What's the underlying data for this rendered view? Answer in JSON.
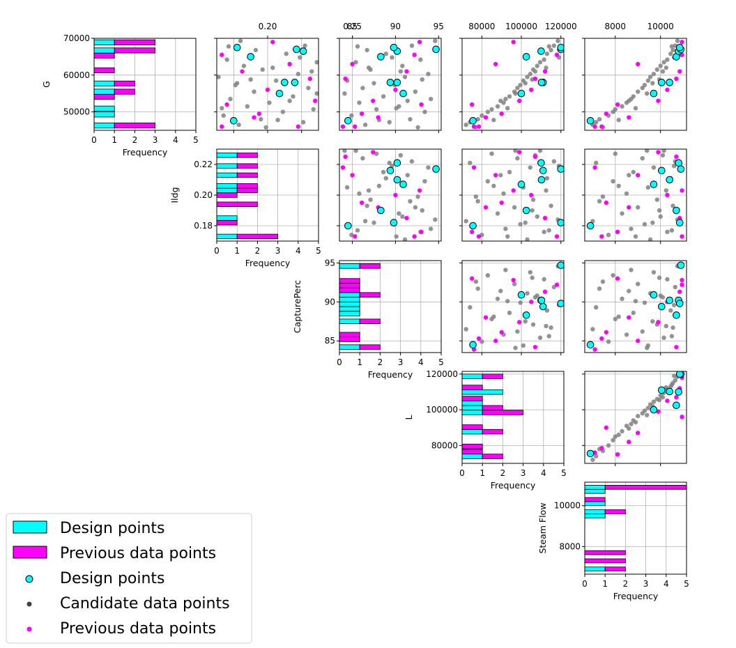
{
  "colors": {
    "design": "#00ffff",
    "previous": "#ff00ff",
    "candidate": "#808080",
    "candidate_legend": "#404040",
    "grid": "#b0b0b0"
  },
  "chart_data": {
    "type": "scatter",
    "subtype": "pair-plot matrix (upper triangle scatter, diagonal horizontal histograms)",
    "variables": [
      {
        "name": "G",
        "range": [
          45000,
          70000
        ],
        "ticks": [
          "50000",
          "60000",
          "70000"
        ],
        "tick_values": [
          50000,
          60000,
          70000
        ]
      },
      {
        "name": "Ildg",
        "range": [
          0.17,
          0.23
        ],
        "ticks": [
          "0.18",
          "0.20",
          "0.22"
        ],
        "tick_values": [
          0.18,
          0.2,
          0.22
        ],
        "top_ticks": [
          "0.20",
          "0.25"
        ],
        "top_tick_values": [
          0.2,
          0.25
        ]
      },
      {
        "name": "CapturePerc",
        "range": [
          83.5,
          95.3
        ],
        "ticks": [
          "85",
          "90",
          "95"
        ],
        "tick_values": [
          85,
          90,
          95
        ]
      },
      {
        "name": "L",
        "range": [
          70000,
          121500
        ],
        "ticks": [
          "80000",
          "100000",
          "120000"
        ],
        "tick_values": [
          80000,
          100000,
          120000
        ]
      },
      {
        "name": "Steam Flow",
        "range": [
          6650,
          11150
        ],
        "ticks": [
          "8000",
          "10000"
        ],
        "tick_values": [
          8000,
          10000
        ]
      }
    ],
    "histograms": {
      "xlabel": "Frequency",
      "xlim": [
        0,
        5
      ],
      "xticks": [
        "0",
        "1",
        "2",
        "3",
        "4",
        "5"
      ],
      "stacked": true,
      "series_order": [
        "Design points",
        "Previous data points"
      ],
      "per_variable": [
        {
          "variable": "G",
          "bins": [
            {
              "lo": 45600,
              "hi": 47000,
              "design": 1,
              "previous": 2
            },
            {
              "lo": 48600,
              "hi": 50000,
              "design": 1,
              "previous": 0
            },
            {
              "lo": 50200,
              "hi": 51600,
              "design": 1,
              "previous": 0
            },
            {
              "lo": 53400,
              "hi": 54800,
              "design": 0,
              "previous": 1
            },
            {
              "lo": 54800,
              "hi": 56200,
              "design": 1,
              "previous": 1
            },
            {
              "lo": 57000,
              "hi": 58400,
              "design": 1,
              "previous": 1
            },
            {
              "lo": 60600,
              "hi": 62000,
              "design": 0,
              "previous": 1
            },
            {
              "lo": 64600,
              "hi": 66000,
              "design": 0,
              "previous": 1
            },
            {
              "lo": 66000,
              "hi": 67400,
              "design": 1,
              "previous": 2
            },
            {
              "lo": 68200,
              "hi": 69600,
              "design": 1,
              "previous": 2
            }
          ]
        },
        {
          "variable": "Ildg",
          "bins": [
            {
              "lo": 0.1715,
              "hi": 0.1745,
              "design": 1,
              "previous": 2
            },
            {
              "lo": 0.1805,
              "hi": 0.1835,
              "design": 0,
              "previous": 1
            },
            {
              "lo": 0.1835,
              "hi": 0.1865,
              "design": 1,
              "previous": 0
            },
            {
              "lo": 0.1925,
              "hi": 0.1955,
              "design": 0,
              "previous": 2
            },
            {
              "lo": 0.1985,
              "hi": 0.2015,
              "design": 0,
              "previous": 1
            },
            {
              "lo": 0.2015,
              "hi": 0.2045,
              "design": 1,
              "previous": 1
            },
            {
              "lo": 0.2045,
              "hi": 0.2075,
              "design": 1,
              "previous": 1
            },
            {
              "lo": 0.2115,
              "hi": 0.2145,
              "design": 1,
              "previous": 1
            },
            {
              "lo": 0.2175,
              "hi": 0.2205,
              "design": 1,
              "previous": 1
            },
            {
              "lo": 0.2245,
              "hi": 0.2275,
              "design": 1,
              "previous": 1
            }
          ]
        },
        {
          "variable": "CapturePerc",
          "bins": [
            {
              "lo": 83.9,
              "hi": 84.5,
              "design": 1,
              "previous": 1
            },
            {
              "lo": 84.9,
              "hi": 85.5,
              "design": 0,
              "previous": 1
            },
            {
              "lo": 85.5,
              "hi": 86.1,
              "design": 0,
              "previous": 1
            },
            {
              "lo": 87.2,
              "hi": 87.8,
              "design": 1,
              "previous": 1
            },
            {
              "lo": 88.2,
              "hi": 88.8,
              "design": 1,
              "previous": 0
            },
            {
              "lo": 88.8,
              "hi": 89.4,
              "design": 1,
              "previous": 0
            },
            {
              "lo": 89.4,
              "hi": 90.0,
              "design": 1,
              "previous": 0
            },
            {
              "lo": 90.0,
              "hi": 90.6,
              "design": 1,
              "previous": 0
            },
            {
              "lo": 90.6,
              "hi": 91.2,
              "design": 1,
              "previous": 1
            },
            {
              "lo": 91.2,
              "hi": 91.8,
              "design": 0,
              "previous": 1
            },
            {
              "lo": 91.8,
              "hi": 92.4,
              "design": 0,
              "previous": 1
            },
            {
              "lo": 92.4,
              "hi": 93.0,
              "design": 0,
              "previous": 1
            },
            {
              "lo": 94.3,
              "hi": 94.9,
              "design": 1,
              "previous": 1
            }
          ]
        },
        {
          "variable": "L",
          "bins": [
            {
              "lo": 72600,
              "hi": 75200,
              "design": 1,
              "previous": 1
            },
            {
              "lo": 75200,
              "hi": 77800,
              "design": 0,
              "previous": 1
            },
            {
              "lo": 78200,
              "hi": 80800,
              "design": 0,
              "previous": 1
            },
            {
              "lo": 86400,
              "hi": 89000,
              "design": 1,
              "previous": 1
            },
            {
              "lo": 89000,
              "hi": 91600,
              "design": 0,
              "previous": 1
            },
            {
              "lo": 97200,
              "hi": 99800,
              "design": 1,
              "previous": 2
            },
            {
              "lo": 99800,
              "hi": 102400,
              "design": 1,
              "previous": 1
            },
            {
              "lo": 102400,
              "hi": 105000,
              "design": 1,
              "previous": 0
            },
            {
              "lo": 105000,
              "hi": 107600,
              "design": 0,
              "previous": 1
            },
            {
              "lo": 108600,
              "hi": 111200,
              "design": 2,
              "previous": 0
            },
            {
              "lo": 111200,
              "hi": 113800,
              "design": 0,
              "previous": 1
            },
            {
              "lo": 117400,
              "hi": 120000,
              "design": 1,
              "previous": 1
            }
          ]
        },
        {
          "variable": "Steam Flow",
          "bins": [
            {
              "lo": 6800,
              "hi": 7000,
              "design": 1,
              "previous": 1
            },
            {
              "lo": 7200,
              "hi": 7400,
              "design": 0,
              "previous": 2
            },
            {
              "lo": 7600,
              "hi": 7800,
              "design": 0,
              "previous": 2
            },
            {
              "lo": 9400,
              "hi": 9600,
              "design": 1,
              "previous": 0
            },
            {
              "lo": 9600,
              "hi": 9800,
              "design": 1,
              "previous": 1
            },
            {
              "lo": 10000,
              "hi": 10200,
              "design": 1,
              "previous": 0
            },
            {
              "lo": 10200,
              "hi": 10400,
              "design": 0,
              "previous": 1
            },
            {
              "lo": 10600,
              "hi": 10800,
              "design": 1,
              "previous": 0
            },
            {
              "lo": 10800,
              "hi": 11000,
              "design": 1,
              "previous": 4
            }
          ]
        }
      ]
    },
    "design_points": [
      {
        "G": 47600,
        "Ildg": 0.18,
        "CapturePerc": 84.5,
        "L": 75500,
        "Steam Flow": 6900
      },
      {
        "G": 55000,
        "Ildg": 0.207,
        "CapturePerc": 90.9,
        "L": 100000,
        "Steam Flow": 9700
      },
      {
        "G": 58000,
        "Ildg": 0.216,
        "CapturePerc": 89.4,
        "L": 111000,
        "Steam Flow": 10050
      },
      {
        "G": 65000,
        "Ildg": 0.19,
        "CapturePerc": 88.3,
        "L": 102500,
        "Steam Flow": 10700
      },
      {
        "G": 66500,
        "Ildg": 0.221,
        "CapturePerc": 90.2,
        "L": 110000,
        "Steam Flow": 10800
      },
      {
        "G": 67000,
        "Ildg": 0.217,
        "CapturePerc": 94.7,
        "L": 120000,
        "Steam Flow": 10900
      },
      {
        "G": 67500,
        "Ildg": 0.182,
        "CapturePerc": 89.8,
        "L": 120000,
        "Steam Flow": 10850
      },
      {
        "G": 58000,
        "Ildg": 0.21,
        "CapturePerc": 90.2,
        "L": 110200,
        "Steam Flow": 10400
      }
    ],
    "previous_points": [
      {
        "G": 46000,
        "Ildg": 0.218,
        "CapturePerc": 83.9,
        "L": 76000,
        "Steam Flow": 7100
      },
      {
        "G": 46000,
        "Ildg": 0.173,
        "CapturePerc": 85.3,
        "L": 78500,
        "Steam Flow": 7400
      },
      {
        "G": 49500,
        "Ildg": 0.195,
        "CapturePerc": 86.1,
        "L": 90000,
        "Steam Flow": 7600
      },
      {
        "G": 53000,
        "Ildg": 0.228,
        "CapturePerc": 87.4,
        "L": 99000,
        "Steam Flow": 9900
      },
      {
        "G": 56000,
        "Ildg": 0.2,
        "CapturePerc": 90.0,
        "L": 105000,
        "Steam Flow": 10300
      },
      {
        "G": 61000,
        "Ildg": 0.185,
        "CapturePerc": 91.3,
        "L": 112000,
        "Steam Flow": 10850
      },
      {
        "G": 65500,
        "Ildg": 0.173,
        "CapturePerc": 92.2,
        "L": 118000,
        "Steam Flow": 10950
      },
      {
        "G": 69000,
        "Ildg": 0.203,
        "CapturePerc": 92.8,
        "L": 96000,
        "Steam Flow": 10950
      },
      {
        "G": 48500,
        "Ildg": 0.192,
        "CapturePerc": 88.0,
        "L": 82000,
        "Steam Flow": 8600
      },
      {
        "G": 63000,
        "Ildg": 0.213,
        "CapturePerc": 85.0,
        "L": 87000,
        "Steam Flow": 9000
      },
      {
        "G": 52000,
        "Ildg": 0.176,
        "CapturePerc": 93.0,
        "L": 75000,
        "Steam Flow": 8100
      },
      {
        "G": 59000,
        "Ildg": 0.225,
        "CapturePerc": 84.2,
        "L": 107000,
        "Steam Flow": 10700
      }
    ],
    "candidate_points_note_excluded": false,
    "candidate_points": [
      {
        "G": 46500,
        "Ildg": 0.183,
        "CapturePerc": 86.5,
        "L": 72000,
        "Steam Flow": 7000
      },
      {
        "G": 47200,
        "Ildg": 0.221,
        "CapturePerc": 89.3,
        "L": 74000,
        "Steam Flow": 7150
      },
      {
        "G": 48000,
        "Ildg": 0.196,
        "CapturePerc": 91.7,
        "L": 78000,
        "Steam Flow": 7300
      },
      {
        "G": 49000,
        "Ildg": 0.174,
        "CapturePerc": 84.9,
        "L": 80000,
        "Steam Flow": 7700
      },
      {
        "G": 50000,
        "Ildg": 0.209,
        "CapturePerc": 93.4,
        "L": 83000,
        "Steam Flow": 7900
      },
      {
        "G": 50700,
        "Ildg": 0.227,
        "CapturePerc": 87.8,
        "L": 85000,
        "Steam Flow": 8000
      },
      {
        "G": 51500,
        "Ildg": 0.188,
        "CapturePerc": 90.4,
        "L": 88000,
        "Steam Flow": 8300
      },
      {
        "G": 52500,
        "Ildg": 0.201,
        "CapturePerc": 85.8,
        "L": 91000,
        "Steam Flow": 8500
      },
      {
        "G": 53500,
        "Ildg": 0.178,
        "CapturePerc": 94.1,
        "L": 92000,
        "Steam Flow": 8700
      },
      {
        "G": 54200,
        "Ildg": 0.215,
        "CapturePerc": 88.6,
        "L": 94000,
        "Steam Flow": 8800
      },
      {
        "G": 55500,
        "Ildg": 0.192,
        "CapturePerc": 92.3,
        "L": 96500,
        "Steam Flow": 9000
      },
      {
        "G": 56500,
        "Ildg": 0.224,
        "CapturePerc": 86.2,
        "L": 98000,
        "Steam Flow": 9200
      },
      {
        "G": 57300,
        "Ildg": 0.181,
        "CapturePerc": 89.9,
        "L": 99500,
        "Steam Flow": 9300
      },
      {
        "G": 58500,
        "Ildg": 0.205,
        "CapturePerc": 84.4,
        "L": 101000,
        "Steam Flow": 9450
      },
      {
        "G": 59500,
        "Ildg": 0.171,
        "CapturePerc": 91.1,
        "L": 103000,
        "Steam Flow": 9550
      },
      {
        "G": 60300,
        "Ildg": 0.218,
        "CapturePerc": 93.8,
        "L": 104500,
        "Steam Flow": 9700
      },
      {
        "G": 61500,
        "Ildg": 0.197,
        "CapturePerc": 87.1,
        "L": 106000,
        "Steam Flow": 9850
      },
      {
        "G": 62500,
        "Ildg": 0.186,
        "CapturePerc": 90.8,
        "L": 108000,
        "Steam Flow": 10000
      },
      {
        "G": 63500,
        "Ildg": 0.229,
        "CapturePerc": 85.4,
        "L": 109500,
        "Steam Flow": 10150
      },
      {
        "G": 64200,
        "Ildg": 0.176,
        "CapturePerc": 92.9,
        "L": 111500,
        "Steam Flow": 10300
      },
      {
        "G": 65800,
        "Ildg": 0.211,
        "CapturePerc": 88.9,
        "L": 113000,
        "Steam Flow": 10450
      },
      {
        "G": 66800,
        "Ildg": 0.193,
        "CapturePerc": 86.7,
        "L": 115000,
        "Steam Flow": 10550
      },
      {
        "G": 68000,
        "Ildg": 0.222,
        "CapturePerc": 91.9,
        "L": 116500,
        "Steam Flow": 10650
      },
      {
        "G": 69300,
        "Ildg": 0.184,
        "CapturePerc": 94.6,
        "L": 118500,
        "Steam Flow": 10750
      },
      {
        "G": 47800,
        "Ildg": 0.206,
        "CapturePerc": 88.1,
        "L": 86000,
        "Steam Flow": 8150
      },
      {
        "G": 51000,
        "Ildg": 0.173,
        "CapturePerc": 90.1,
        "L": 93000,
        "Steam Flow": 8900
      },
      {
        "G": 55000,
        "Ildg": 0.229,
        "CapturePerc": 84.1,
        "L": 97000,
        "Steam Flow": 9400
      },
      {
        "G": 58800,
        "Ildg": 0.19,
        "CapturePerc": 93.1,
        "L": 105500,
        "Steam Flow": 9950
      },
      {
        "G": 62000,
        "Ildg": 0.203,
        "CapturePerc": 86.9,
        "L": 112500,
        "Steam Flow": 10250
      },
      {
        "G": 64800,
        "Ildg": 0.219,
        "CapturePerc": 89.6,
        "L": 119000,
        "Steam Flow": 10600
      },
      {
        "G": 67800,
        "Ildg": 0.177,
        "CapturePerc": 85.6,
        "L": 114000,
        "Steam Flow": 10500
      },
      {
        "G": 45800,
        "Ildg": 0.199,
        "CapturePerc": 92.6,
        "L": 77000,
        "Steam Flow": 7450
      },
      {
        "G": 53000,
        "Ildg": 0.213,
        "CapturePerc": 91.4,
        "L": 89500,
        "Steam Flow": 8600
      },
      {
        "G": 57800,
        "Ildg": 0.182,
        "CapturePerc": 87.5,
        "L": 102000,
        "Steam Flow": 9650
      },
      {
        "G": 61000,
        "Ildg": 0.226,
        "CapturePerc": 90.6,
        "L": 107000,
        "Steam Flow": 10100
      }
    ],
    "legend": {
      "placement": "bottom-left",
      "entries": [
        {
          "label": "Design points",
          "kind": "patch",
          "color_key": "design"
        },
        {
          "label": "Previous data points",
          "kind": "patch",
          "color_key": "previous"
        },
        {
          "label": "Design points",
          "kind": "marker",
          "color_key": "design"
        },
        {
          "label": "Candidate data points",
          "kind": "marker",
          "color_key": "candidate_legend"
        },
        {
          "label": "Previous data points",
          "kind": "marker",
          "color_key": "previous"
        }
      ]
    },
    "grid": true
  }
}
